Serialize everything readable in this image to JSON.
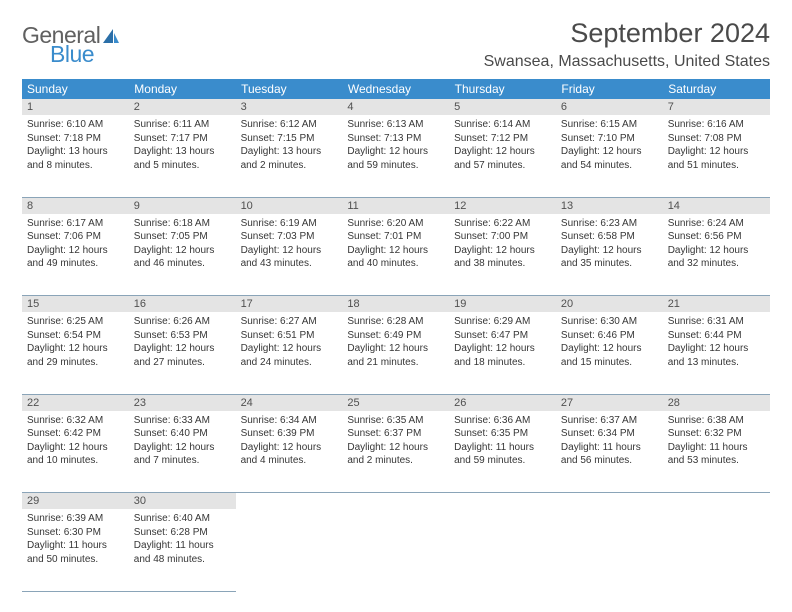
{
  "logo": {
    "general": "General",
    "blue": "Blue"
  },
  "title": "September 2024",
  "location": "Swansea, Massachusetts, United States",
  "colors": {
    "header_bg": "#3a8ccc",
    "header_text": "#ffffff",
    "daynum_bg": "#e4e4e4",
    "cell_border": "#8aa4b8",
    "body_text": "#363636",
    "page_bg": "#ffffff"
  },
  "weekdays": [
    "Sunday",
    "Monday",
    "Tuesday",
    "Wednesday",
    "Thursday",
    "Friday",
    "Saturday"
  ],
  "weeks": [
    [
      {
        "day": "1",
        "sunrise": "Sunrise: 6:10 AM",
        "sunset": "Sunset: 7:18 PM",
        "daylight": "Daylight: 13 hours and 8 minutes."
      },
      {
        "day": "2",
        "sunrise": "Sunrise: 6:11 AM",
        "sunset": "Sunset: 7:17 PM",
        "daylight": "Daylight: 13 hours and 5 minutes."
      },
      {
        "day": "3",
        "sunrise": "Sunrise: 6:12 AM",
        "sunset": "Sunset: 7:15 PM",
        "daylight": "Daylight: 13 hours and 2 minutes."
      },
      {
        "day": "4",
        "sunrise": "Sunrise: 6:13 AM",
        "sunset": "Sunset: 7:13 PM",
        "daylight": "Daylight: 12 hours and 59 minutes."
      },
      {
        "day": "5",
        "sunrise": "Sunrise: 6:14 AM",
        "sunset": "Sunset: 7:12 PM",
        "daylight": "Daylight: 12 hours and 57 minutes."
      },
      {
        "day": "6",
        "sunrise": "Sunrise: 6:15 AM",
        "sunset": "Sunset: 7:10 PM",
        "daylight": "Daylight: 12 hours and 54 minutes."
      },
      {
        "day": "7",
        "sunrise": "Sunrise: 6:16 AM",
        "sunset": "Sunset: 7:08 PM",
        "daylight": "Daylight: 12 hours and 51 minutes."
      }
    ],
    [
      {
        "day": "8",
        "sunrise": "Sunrise: 6:17 AM",
        "sunset": "Sunset: 7:06 PM",
        "daylight": "Daylight: 12 hours and 49 minutes."
      },
      {
        "day": "9",
        "sunrise": "Sunrise: 6:18 AM",
        "sunset": "Sunset: 7:05 PM",
        "daylight": "Daylight: 12 hours and 46 minutes."
      },
      {
        "day": "10",
        "sunrise": "Sunrise: 6:19 AM",
        "sunset": "Sunset: 7:03 PM",
        "daylight": "Daylight: 12 hours and 43 minutes."
      },
      {
        "day": "11",
        "sunrise": "Sunrise: 6:20 AM",
        "sunset": "Sunset: 7:01 PM",
        "daylight": "Daylight: 12 hours and 40 minutes."
      },
      {
        "day": "12",
        "sunrise": "Sunrise: 6:22 AM",
        "sunset": "Sunset: 7:00 PM",
        "daylight": "Daylight: 12 hours and 38 minutes."
      },
      {
        "day": "13",
        "sunrise": "Sunrise: 6:23 AM",
        "sunset": "Sunset: 6:58 PM",
        "daylight": "Daylight: 12 hours and 35 minutes."
      },
      {
        "day": "14",
        "sunrise": "Sunrise: 6:24 AM",
        "sunset": "Sunset: 6:56 PM",
        "daylight": "Daylight: 12 hours and 32 minutes."
      }
    ],
    [
      {
        "day": "15",
        "sunrise": "Sunrise: 6:25 AM",
        "sunset": "Sunset: 6:54 PM",
        "daylight": "Daylight: 12 hours and 29 minutes."
      },
      {
        "day": "16",
        "sunrise": "Sunrise: 6:26 AM",
        "sunset": "Sunset: 6:53 PM",
        "daylight": "Daylight: 12 hours and 27 minutes."
      },
      {
        "day": "17",
        "sunrise": "Sunrise: 6:27 AM",
        "sunset": "Sunset: 6:51 PM",
        "daylight": "Daylight: 12 hours and 24 minutes."
      },
      {
        "day": "18",
        "sunrise": "Sunrise: 6:28 AM",
        "sunset": "Sunset: 6:49 PM",
        "daylight": "Daylight: 12 hours and 21 minutes."
      },
      {
        "day": "19",
        "sunrise": "Sunrise: 6:29 AM",
        "sunset": "Sunset: 6:47 PM",
        "daylight": "Daylight: 12 hours and 18 minutes."
      },
      {
        "day": "20",
        "sunrise": "Sunrise: 6:30 AM",
        "sunset": "Sunset: 6:46 PM",
        "daylight": "Daylight: 12 hours and 15 minutes."
      },
      {
        "day": "21",
        "sunrise": "Sunrise: 6:31 AM",
        "sunset": "Sunset: 6:44 PM",
        "daylight": "Daylight: 12 hours and 13 minutes."
      }
    ],
    [
      {
        "day": "22",
        "sunrise": "Sunrise: 6:32 AM",
        "sunset": "Sunset: 6:42 PM",
        "daylight": "Daylight: 12 hours and 10 minutes."
      },
      {
        "day": "23",
        "sunrise": "Sunrise: 6:33 AM",
        "sunset": "Sunset: 6:40 PM",
        "daylight": "Daylight: 12 hours and 7 minutes."
      },
      {
        "day": "24",
        "sunrise": "Sunrise: 6:34 AM",
        "sunset": "Sunset: 6:39 PM",
        "daylight": "Daylight: 12 hours and 4 minutes."
      },
      {
        "day": "25",
        "sunrise": "Sunrise: 6:35 AM",
        "sunset": "Sunset: 6:37 PM",
        "daylight": "Daylight: 12 hours and 2 minutes."
      },
      {
        "day": "26",
        "sunrise": "Sunrise: 6:36 AM",
        "sunset": "Sunset: 6:35 PM",
        "daylight": "Daylight: 11 hours and 59 minutes."
      },
      {
        "day": "27",
        "sunrise": "Sunrise: 6:37 AM",
        "sunset": "Sunset: 6:34 PM",
        "daylight": "Daylight: 11 hours and 56 minutes."
      },
      {
        "day": "28",
        "sunrise": "Sunrise: 6:38 AM",
        "sunset": "Sunset: 6:32 PM",
        "daylight": "Daylight: 11 hours and 53 minutes."
      }
    ],
    [
      {
        "day": "29",
        "sunrise": "Sunrise: 6:39 AM",
        "sunset": "Sunset: 6:30 PM",
        "daylight": "Daylight: 11 hours and 50 minutes."
      },
      {
        "day": "30",
        "sunrise": "Sunrise: 6:40 AM",
        "sunset": "Sunset: 6:28 PM",
        "daylight": "Daylight: 11 hours and 48 minutes."
      },
      null,
      null,
      null,
      null,
      null
    ]
  ]
}
